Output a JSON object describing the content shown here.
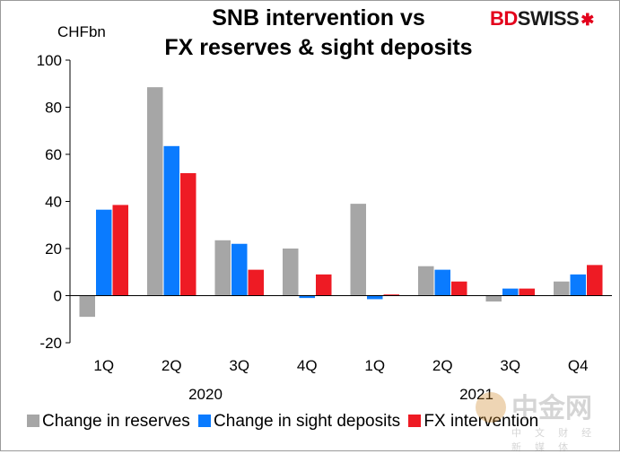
{
  "header": {
    "title_line1": "SNB intervention vs",
    "title_line2": "FX reserves & sight deposits",
    "unit": "CHFbn"
  },
  "logo": {
    "part1": "BD",
    "part2": "SWISS"
  },
  "watermark": {
    "text": "中金网",
    "sub": "中 文 财 经 新 媒 体"
  },
  "colors": {
    "reserves": "#a6a6a6",
    "sight_deposits": "#0a7bff",
    "fx_intervention": "#ee1b24"
  },
  "chart_data": {
    "type": "bar",
    "title": "SNB intervention vs FX reserves & sight deposits",
    "ylabel": "CHFbn",
    "xlabel": "",
    "ylim": [
      -20,
      100
    ],
    "yticks": [
      -20,
      0,
      20,
      40,
      60,
      80,
      100
    ],
    "categories": [
      "1Q",
      "2Q",
      "3Q",
      "4Q",
      "1Q",
      "2Q",
      "3Q",
      "Q4"
    ],
    "year_groups": [
      {
        "label": "2020",
        "start": 0,
        "end": 3
      },
      {
        "label": "2021",
        "start": 4,
        "end": 7
      }
    ],
    "series": [
      {
        "name": "Change in reserves",
        "values": [
          -9,
          88.5,
          23.5,
          20,
          39,
          12.5,
          -2.5,
          6
        ]
      },
      {
        "name": "Change in sight deposits",
        "values": [
          36.5,
          63.5,
          22,
          -1,
          -1.5,
          11,
          3,
          9
        ]
      },
      {
        "name": "FX intervention",
        "values": [
          38.5,
          52,
          11,
          9,
          0.5,
          6,
          3,
          13
        ]
      }
    ]
  }
}
